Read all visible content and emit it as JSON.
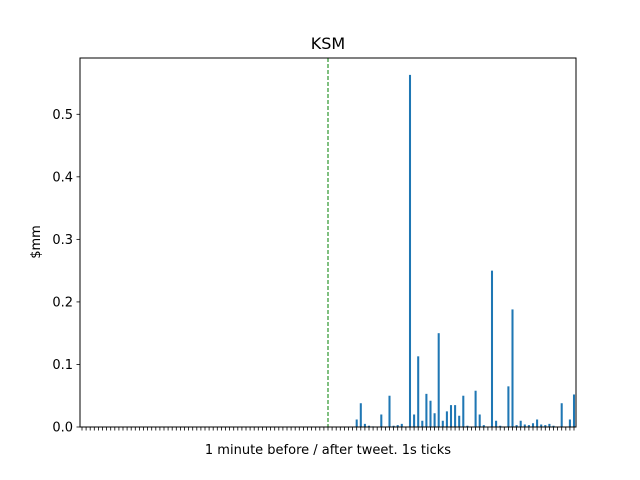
{
  "chart_data": {
    "type": "bar",
    "title": "KSM",
    "xlabel": "1 minute before / after tweet. 1s ticks",
    "ylabel": "$mm",
    "ylim": [
      0,
      0.59
    ],
    "yticks": [
      0.0,
      0.1,
      0.2,
      0.3,
      0.4,
      0.5
    ],
    "ytick_labels": [
      "0.0",
      "0.1",
      "0.2",
      "0.3",
      "0.4",
      "0.5"
    ],
    "x_count": 121,
    "tweet_index": 60,
    "colors": {
      "bar": "#1f77b4",
      "tweet_line": "#008000"
    },
    "grid": false,
    "points": [
      {
        "x": 67,
        "y": 0.012
      },
      {
        "x": 68,
        "y": 0.038
      },
      {
        "x": 69,
        "y": 0.005
      },
      {
        "x": 70,
        "y": 0.002
      },
      {
        "x": 71,
        "y": 0.001
      },
      {
        "x": 73,
        "y": 0.02
      },
      {
        "x": 75,
        "y": 0.05
      },
      {
        "x": 76,
        "y": 0.002
      },
      {
        "x": 77,
        "y": 0.003
      },
      {
        "x": 78,
        "y": 0.005
      },
      {
        "x": 80,
        "y": 0.563
      },
      {
        "x": 81,
        "y": 0.02
      },
      {
        "x": 82,
        "y": 0.113
      },
      {
        "x": 83,
        "y": 0.01
      },
      {
        "x": 84,
        "y": 0.053
      },
      {
        "x": 85,
        "y": 0.042
      },
      {
        "x": 86,
        "y": 0.022
      },
      {
        "x": 87,
        "y": 0.15
      },
      {
        "x": 88,
        "y": 0.01
      },
      {
        "x": 89,
        "y": 0.025
      },
      {
        "x": 90,
        "y": 0.035
      },
      {
        "x": 91,
        "y": 0.035
      },
      {
        "x": 92,
        "y": 0.018
      },
      {
        "x": 93,
        "y": 0.05
      },
      {
        "x": 94,
        "y": 0.002
      },
      {
        "x": 96,
        "y": 0.058
      },
      {
        "x": 97,
        "y": 0.02
      },
      {
        "x": 98,
        "y": 0.003
      },
      {
        "x": 100,
        "y": 0.25
      },
      {
        "x": 101,
        "y": 0.01
      },
      {
        "x": 102,
        "y": 0.002
      },
      {
        "x": 104,
        "y": 0.065
      },
      {
        "x": 105,
        "y": 0.188
      },
      {
        "x": 106,
        "y": 0.003
      },
      {
        "x": 107,
        "y": 0.01
      },
      {
        "x": 108,
        "y": 0.004
      },
      {
        "x": 109,
        "y": 0.003
      },
      {
        "x": 110,
        "y": 0.006
      },
      {
        "x": 111,
        "y": 0.012
      },
      {
        "x": 112,
        "y": 0.004
      },
      {
        "x": 113,
        "y": 0.003
      },
      {
        "x": 114,
        "y": 0.005
      },
      {
        "x": 115,
        "y": 0.002
      },
      {
        "x": 117,
        "y": 0.038
      },
      {
        "x": 119,
        "y": 0.012
      },
      {
        "x": 120,
        "y": 0.052
      }
    ]
  }
}
